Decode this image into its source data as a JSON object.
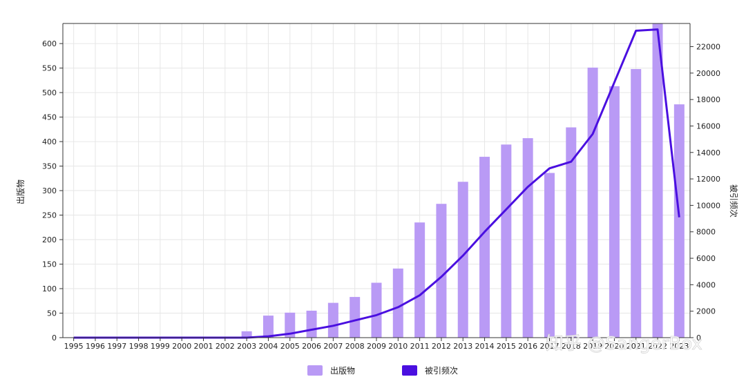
{
  "chart_data": {
    "type": "bar",
    "categories": [
      "1995",
      "1996",
      "1997",
      "1998",
      "1999",
      "2000",
      "2001",
      "2002",
      "2003",
      "2004",
      "2005",
      "2006",
      "2007",
      "2008",
      "2009",
      "2010",
      "2011",
      "2012",
      "2013",
      "2014",
      "2015",
      "2016",
      "2017",
      "2018",
      "2019",
      "2020",
      "2021",
      "2022",
      "2023"
    ],
    "x_tick_labels": [
      "1995",
      "1996",
      "1997",
      "1998",
      "1999",
      "2000",
      "2001",
      "2002",
      "2003",
      "2004",
      "2005",
      "2006",
      "2007",
      "2008",
      "2009",
      "2010",
      "2011",
      "2012",
      "2013",
      "2014",
      "2015",
      "2016",
      "2017",
      "2018",
      "2019",
      "2020",
      "2021",
      "2022",
      "2023"
    ],
    "series": [
      {
        "name": "出版物",
        "type": "bar",
        "axis": "left",
        "color": "#b99af5",
        "values": [
          0,
          0,
          0,
          0,
          0,
          0,
          0,
          0,
          13,
          45,
          51,
          55,
          71,
          83,
          112,
          141,
          235,
          273,
          318,
          369,
          394,
          407,
          336,
          429,
          551,
          513,
          548,
          641,
          476
        ]
      },
      {
        "name": "被引频次",
        "type": "line",
        "axis": "right",
        "color": "#4a0fe0",
        "values": [
          0,
          0,
          0,
          0,
          0,
          0,
          0,
          0,
          0,
          100,
          300,
          600,
          900,
          1300,
          1700,
          2300,
          3200,
          4600,
          6200,
          8000,
          9700,
          11400,
          12800,
          13300,
          15400,
          19300,
          23200,
          23300,
          9100
        ]
      }
    ],
    "ylabel_left": "出版物",
    "ylabel_right": "被引频次",
    "ylim_left": [
      0,
      641
    ],
    "ylim_right": [
      0,
      23750
    ],
    "yticks_left": [
      0,
      50,
      100,
      150,
      200,
      250,
      300,
      350,
      400,
      450,
      500,
      550,
      600
    ],
    "yticks_right": [
      0,
      2000,
      4000,
      6000,
      8000,
      10000,
      12000,
      14000,
      16000,
      18000,
      20000,
      22000
    ],
    "yticks_right_labels": [
      "0",
      "2000",
      "4000",
      "6000",
      "8000",
      "10000",
      "12000",
      "14000",
      "16000",
      "18000",
      "20000",
      "22000"
    ],
    "grid": true,
    "legend_position": "bottom-center",
    "watermark": "知乎 @SangerBox"
  }
}
